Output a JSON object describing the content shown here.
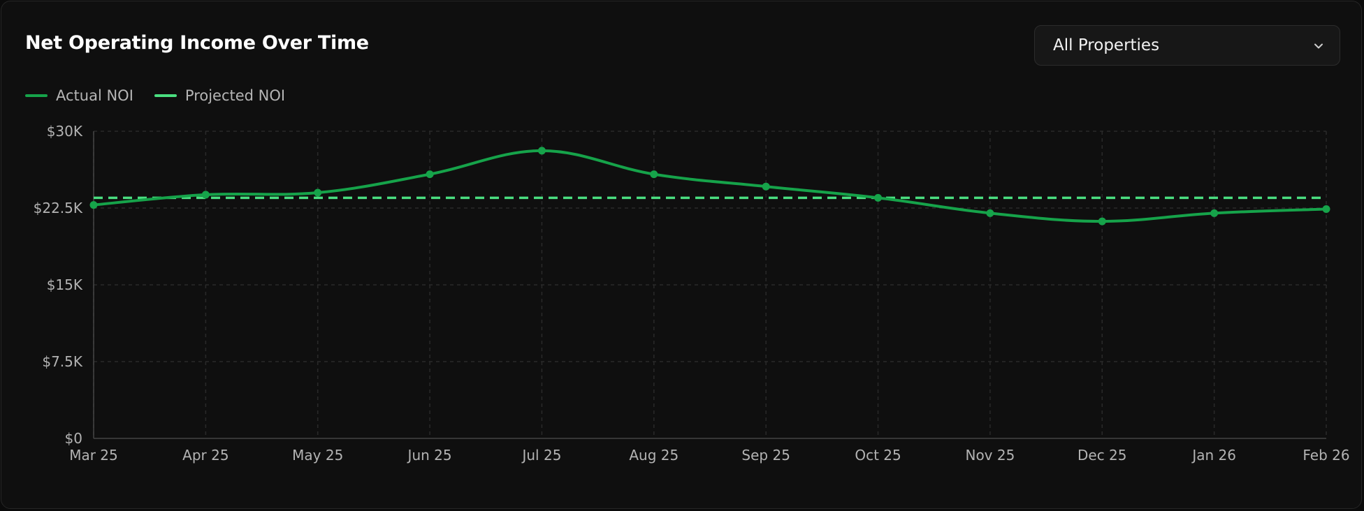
{
  "header": {
    "title": "Net Operating Income Over Time"
  },
  "filter": {
    "selected": "All Properties",
    "icon": "chevron-down-icon"
  },
  "legend": {
    "items": [
      {
        "label": "Actual NOI",
        "color": "#16a34a"
      },
      {
        "label": "Projected NOI",
        "color": "#4ade80"
      }
    ]
  },
  "chart_data": {
    "type": "line",
    "title": "Net Operating Income Over Time",
    "x": [
      "Mar 25",
      "Apr 25",
      "May 25",
      "Jun 25",
      "Jul 25",
      "Aug 25",
      "Sep 25",
      "Oct 25",
      "Nov 25",
      "Dec 25",
      "Jan 26",
      "Feb 26"
    ],
    "series": [
      {
        "name": "Actual NOI",
        "values": [
          22800,
          23800,
          24000,
          25800,
          28100,
          25800,
          24600,
          23500,
          22000,
          21200,
          22000,
          22400
        ],
        "color": "#16a34a",
        "style": "solid",
        "markers": true
      },
      {
        "name": "Projected NOI",
        "values": [
          23500,
          23500,
          23500,
          23500,
          23500,
          23500,
          23500,
          23500,
          23500,
          23500,
          23500,
          23500
        ],
        "color": "#4ade80",
        "style": "dashed",
        "markers": false
      }
    ],
    "yticks": [
      0,
      7500,
      15000,
      22500,
      30000
    ],
    "ytick_labels": [
      "$0",
      "$7.5K",
      "$15K",
      "$22.5K",
      "$30K"
    ],
    "ylim": [
      0,
      30000
    ],
    "grid": true,
    "legend_position": "top-left"
  }
}
